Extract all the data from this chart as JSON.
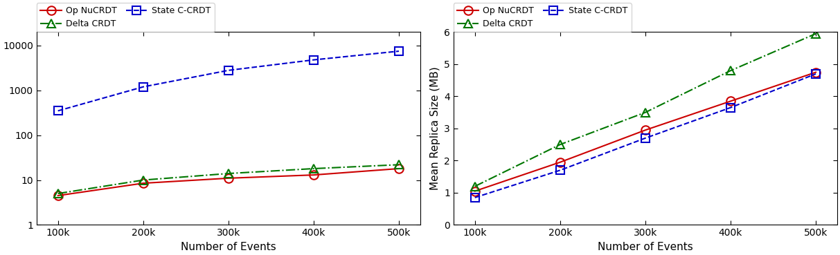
{
  "x": [
    100000,
    200000,
    300000,
    400000,
    500000
  ],
  "x_labels": [
    "100k",
    "200k",
    "300k",
    "400k",
    "500k"
  ],
  "left_op_nucrdt": [
    4.5,
    8.5,
    11.0,
    13.0,
    18.0
  ],
  "left_delta_crdt": [
    5.0,
    10.0,
    14.0,
    18.0,
    22.0
  ],
  "left_state_ccrdt": [
    350,
    1200,
    2800,
    4800,
    7500
  ],
  "right_op_nucrdt": [
    1.05,
    1.95,
    2.95,
    3.85,
    4.75
  ],
  "right_delta_crdt": [
    1.2,
    2.5,
    3.5,
    4.8,
    5.95
  ],
  "right_state_ccrdt": [
    0.85,
    1.7,
    2.7,
    3.65,
    4.7
  ],
  "op_nucrdt_color": "#cc0000",
  "delta_crdt_color": "#007700",
  "state_ccrdt_color": "#0000cc",
  "right_ylabel": "Mean Replica Size (MB)",
  "xlabel": "Number of Events",
  "figure_width": 12.13,
  "figure_height": 3.69
}
